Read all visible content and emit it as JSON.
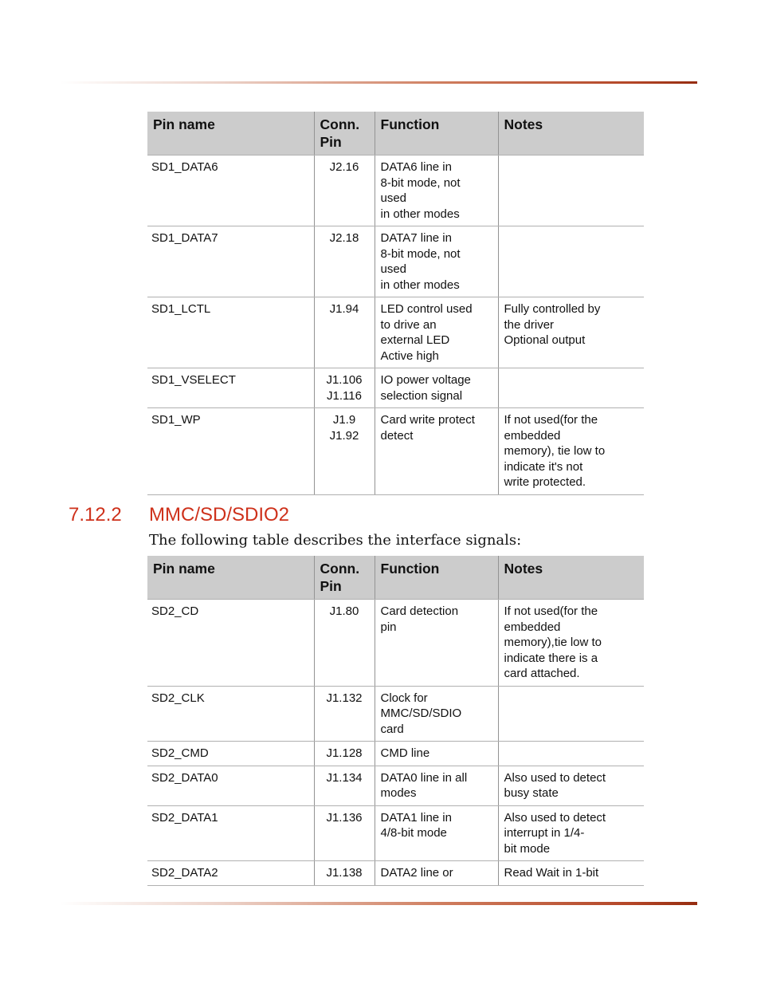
{
  "colors": {
    "accent": "#ce311b",
    "table_header_bg": "#cccccc",
    "rule_end": "#952c10"
  },
  "section": {
    "number": "7.12.2",
    "title": "MMC/SD/SDIO2",
    "intro": "The following table describes the interface signals:"
  },
  "table1": {
    "headers": [
      "Pin name",
      "Conn.\nPin",
      "Function",
      "Notes"
    ],
    "rows": [
      {
        "pin": "SD1_DATA6",
        "conn": "J2.16",
        "fn": "DATA6 line in\n8-bit mode, not\nused\nin other modes",
        "notes": ""
      },
      {
        "pin": "SD1_DATA7",
        "conn": "J2.18",
        "fn": "DATA7 line in\n8-bit mode, not\nused\nin other modes",
        "notes": ""
      },
      {
        "pin": "SD1_LCTL",
        "conn": "J1.94",
        "fn": "LED control used\nto drive an\nexternal LED\nActive high",
        "notes": "Fully controlled by\nthe driver\nOptional output"
      },
      {
        "pin": "SD1_VSELECT",
        "conn": "J1.106\nJ1.116",
        "fn": "IO power voltage\nselection signal",
        "notes": ""
      },
      {
        "pin": "SD1_WP",
        "conn": "J1.9\nJ1.92",
        "fn": "Card write protect\ndetect",
        "notes": "If not used(for the\nembedded\nmemory), tie low to\nindicate it's not\nwrite protected."
      }
    ]
  },
  "table2": {
    "headers": [
      "Pin name",
      "Conn.\nPin",
      "Function",
      "Notes"
    ],
    "rows": [
      {
        "pin": "SD2_CD",
        "conn": "J1.80",
        "fn": "Card detection\npin",
        "notes": "If not used(for the\nembedded\nmemory),tie low to\nindicate there is a\ncard attached."
      },
      {
        "pin": "SD2_CLK",
        "conn": "J1.132",
        "fn": "Clock for\nMMC/SD/SDIO\ncard",
        "notes": ""
      },
      {
        "pin": "SD2_CMD",
        "conn": "J1.128",
        "fn": "CMD line",
        "notes": ""
      },
      {
        "pin": "SD2_DATA0",
        "conn": "J1.134",
        "fn": "DATA0 line in all\nmodes",
        "notes": "Also used to detect\nbusy state"
      },
      {
        "pin": "SD2_DATA1",
        "conn": "J1.136",
        "fn": "DATA1 line in\n4/8-bit mode",
        "notes": "Also used to detect\ninterrupt in 1/4-\nbit mode"
      },
      {
        "pin": "SD2_DATA2",
        "conn": "J1.138",
        "fn": "DATA2 line or",
        "notes": "Read Wait in 1-bit"
      }
    ]
  }
}
